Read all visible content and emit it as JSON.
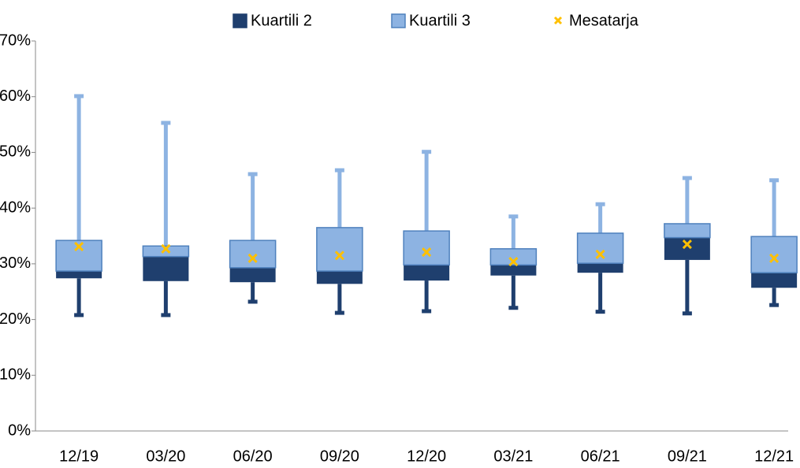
{
  "chart_data": {
    "type": "box",
    "categories": [
      "12/19",
      "03/20",
      "06/20",
      "09/20",
      "12/20",
      "03/21",
      "06/21",
      "09/21",
      "12/21"
    ],
    "min": [
      20.8,
      20.8,
      23.2,
      21.2,
      21.5,
      22.1,
      21.4,
      21.1,
      22.6
    ],
    "q1": [
      27.4,
      26.9,
      26.7,
      26.4,
      27.0,
      27.9,
      28.4,
      30.7,
      25.7
    ],
    "median": [
      28.7,
      31.3,
      29.3,
      28.7,
      29.8,
      29.8,
      30.1,
      34.7,
      28.4
    ],
    "q3": [
      34.2,
      33.2,
      34.2,
      36.5,
      35.9,
      32.7,
      35.5,
      37.2,
      34.9
    ],
    "max": [
      60.1,
      55.3,
      46.1,
      46.8,
      50.1,
      38.5,
      40.7,
      45.4,
      45.0
    ],
    "mean": [
      33.1,
      32.7,
      31.0,
      31.5,
      32.1,
      30.4,
      31.7,
      33.5,
      31.0
    ],
    "legend": [
      {
        "name": "Kuartili 2",
        "color": "#1f3f6e"
      },
      {
        "name": "Kuartili 3",
        "color": "#8db3e2"
      },
      {
        "name": "Mesatarja",
        "color": "#ffc000"
      }
    ],
    "ylim": [
      0,
      70
    ],
    "yticks": [
      {
        "value": 0,
        "label": "0%"
      },
      {
        "value": 10,
        "label": "10%"
      },
      {
        "value": 20,
        "label": "20%"
      },
      {
        "value": 30,
        "label": "30%"
      },
      {
        "value": 40,
        "label": "40%"
      },
      {
        "value": 50,
        "label": "50%"
      },
      {
        "value": 60,
        "label": "60%"
      },
      {
        "value": 70,
        "label": "70%"
      }
    ]
  }
}
